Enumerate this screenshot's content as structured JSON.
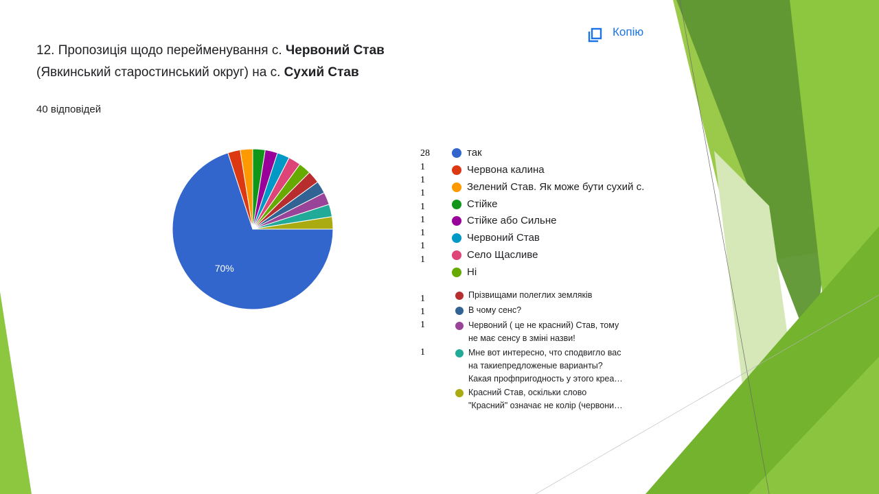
{
  "header": {
    "title_prefix": "12. Пропозиція щодо перейменування с. ",
    "title_bold_1": "Червоний Став",
    "title_middle": "(Явкинський старостинський округ) на с. ",
    "title_bold_2": "Сухий Став",
    "responses": "40 відповідей",
    "copy_label": "Копію",
    "copy_icon": "copy-icon"
  },
  "chart_data": {
    "type": "pie",
    "total": 40,
    "slices": [
      {
        "label": "так",
        "value": 28,
        "color": "#3366cc",
        "percent_label": "70%"
      },
      {
        "label": "Червона калина",
        "value": 1,
        "color": "#dc3912"
      },
      {
        "label": "Зелений Став. Як може бути сухий с.",
        "value": 1,
        "color": "#ff9900"
      },
      {
        "label": "Стійке",
        "value": 1,
        "color": "#109618"
      },
      {
        "label": "Стійке або Сильне",
        "value": 1,
        "color": "#990099"
      },
      {
        "label": "Червоний Став",
        "value": 1,
        "color": "#0099c6"
      },
      {
        "label": "Село Щасливе",
        "value": 1,
        "color": "#dd4477"
      },
      {
        "label": "Ні",
        "value": 1,
        "color": "#66aa00"
      },
      {
        "label": "Прізвищами полеглих земляків",
        "value": 1,
        "color": "#b82e2e"
      },
      {
        "label": "В чому сенс?",
        "value": 1,
        "color": "#316395"
      },
      {
        "label": "Червоний ( це не красний) Став, тому не має сенсу в зміні назви!",
        "value": 1,
        "color": "#994499"
      },
      {
        "label": "Мне вот интересно, что сподвигло вас на такиепредложеные варианты? Какая профпригодность у этого креа…",
        "value": 1,
        "color": "#22aa99"
      },
      {
        "label": "Красний Став, оскільки слово \"Красний\" означає не колір (червони…",
        "value": 1,
        "color": "#aaaa11"
      }
    ]
  },
  "legend_small_lines": [
    [
      "Прізвищами полеглих земляків"
    ],
    [
      "В чому сенс?"
    ],
    [
      "Червоний ( це не красний) Став, тому",
      "не має сенсу в зміні назви!"
    ],
    [
      "Мне вот интересно, что сподвигло вас",
      "на такиепредложеные варианты?",
      "Какая профпригодность у этого креа…"
    ],
    [
      "Красний Став, оскільки слово",
      "\"Красний\" означає не колір (червони…"
    ]
  ]
}
